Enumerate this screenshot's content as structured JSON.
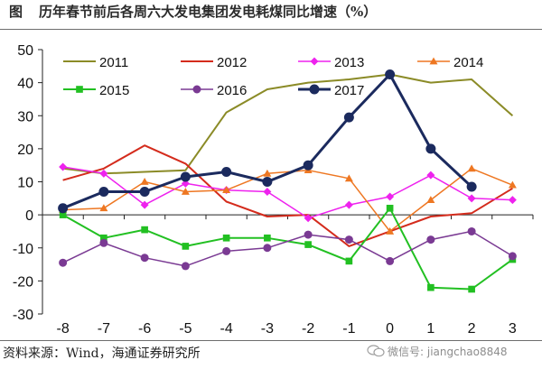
{
  "figure": {
    "label": "图",
    "title": "历年春节前后各周六大发电集团发电耗煤同比增速（%）",
    "source": "资料来源：Wind，海通证券研究所",
    "watermark": "微信号: jiangchao8848"
  },
  "chart_data": {
    "type": "line",
    "title": "历年春节前后各周六大发电集团发电耗煤同比增速（%）",
    "xlabel": "",
    "ylabel": "",
    "x": [
      -8,
      -7,
      -6,
      -5,
      -4,
      -3,
      -2,
      -1,
      0,
      1,
      2,
      3
    ],
    "xticks": [
      "-8",
      "-7",
      "-6",
      "-5",
      "-4",
      "-3",
      "-2",
      "-1",
      "0",
      "1",
      "2",
      "3"
    ],
    "ylim": [
      -30,
      50
    ],
    "yticks": [
      "-30",
      "-20",
      "-10",
      "0",
      "10",
      "20",
      "30",
      "40",
      "50"
    ],
    "ytick_values": [
      -30,
      -20,
      -10,
      0,
      10,
      20,
      30,
      40,
      50
    ],
    "grid": false,
    "legend_position": "top",
    "series": [
      {
        "name": "2011",
        "color": "#8b8b27",
        "marker": "none",
        "width": 2,
        "values": [
          14,
          12.5,
          13,
          13.5,
          31,
          38,
          40,
          41,
          42.5,
          40,
          41,
          30
        ]
      },
      {
        "name": "2012",
        "color": "#d42b1c",
        "marker": "none",
        "width": 2,
        "values": [
          10.5,
          14,
          21,
          15.5,
          4,
          -0.5,
          0,
          -9.5,
          -5,
          -0.5,
          0.5,
          8
        ]
      },
      {
        "name": "2013",
        "color": "#ee22ee",
        "marker": "diamond",
        "width": 1.5,
        "values": [
          14.5,
          12.5,
          3,
          9.5,
          7.5,
          7,
          -1,
          3,
          5.5,
          12,
          5,
          4.5
        ]
      },
      {
        "name": "2014",
        "color": "#ee7722",
        "marker": "triangle",
        "width": 1.5,
        "values": [
          1.5,
          2,
          10,
          7,
          7.5,
          12.5,
          13.5,
          11,
          -5,
          4.5,
          14,
          9
        ]
      },
      {
        "name": "2015",
        "color": "#22c022",
        "marker": "square",
        "width": 2,
        "values": [
          0,
          -7,
          -4.5,
          -9.5,
          -7,
          -7,
          -9,
          -14,
          2,
          -22,
          -22.5,
          -13.5
        ]
      },
      {
        "name": "2016",
        "color": "#7a3a93",
        "marker": "circle",
        "width": 1.5,
        "values": [
          -14.5,
          -8.5,
          -13,
          -15.5,
          -11,
          -10,
          -6,
          -7.5,
          -14,
          -7.5,
          -5,
          -12.5
        ]
      },
      {
        "name": "2017",
        "color": "#1b2a5e",
        "marker": "circle",
        "width": 3,
        "values": [
          2,
          7,
          7,
          11.5,
          13,
          10,
          15,
          29.5,
          42.5,
          20,
          8.5,
          null
        ]
      }
    ]
  }
}
